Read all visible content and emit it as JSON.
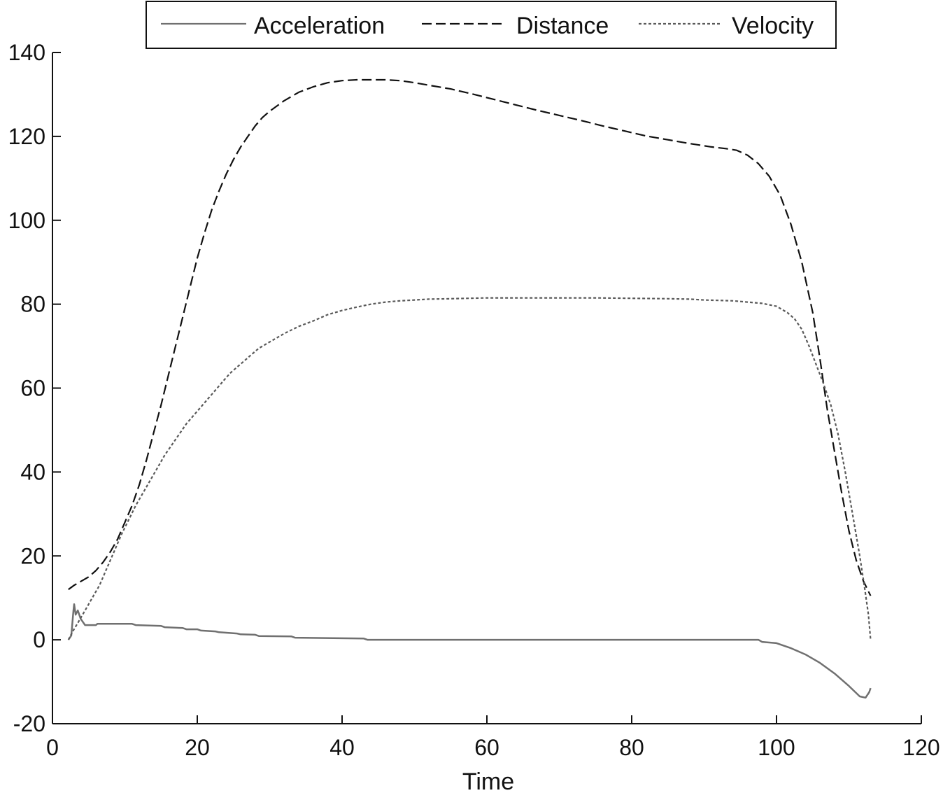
{
  "chart_data": {
    "type": "line",
    "title": "",
    "xlabel": "Time",
    "ylabel": "",
    "xlim": [
      0,
      120
    ],
    "ylim": [
      -20,
      140
    ],
    "xticks": [
      0,
      20,
      40,
      60,
      80,
      100,
      120
    ],
    "yticks": [
      -20,
      0,
      20,
      40,
      60,
      80,
      100,
      120,
      140
    ],
    "grid": false,
    "legend_position": "top",
    "series": [
      {
        "name": "Acceleration",
        "style": "solid",
        "color": "#707070",
        "points": [
          [
            2.2,
            0
          ],
          [
            2.6,
            1
          ],
          [
            2.9,
            7
          ],
          [
            3.0,
            8.5
          ],
          [
            3.2,
            6
          ],
          [
            3.5,
            7
          ],
          [
            3.9,
            5
          ],
          [
            4.5,
            3.5
          ],
          [
            6,
            3.5
          ],
          [
            6.2,
            3.8
          ],
          [
            11,
            3.8
          ],
          [
            11.5,
            3.5
          ],
          [
            15,
            3.3
          ],
          [
            15.5,
            3
          ],
          [
            18,
            2.8
          ],
          [
            18.5,
            2.5
          ],
          [
            20,
            2.5
          ],
          [
            20.5,
            2.2
          ],
          [
            22.5,
            2
          ],
          [
            23,
            1.8
          ],
          [
            25.5,
            1.5
          ],
          [
            26,
            1.3
          ],
          [
            28,
            1.2
          ],
          [
            28.5,
            0.9
          ],
          [
            33,
            0.8
          ],
          [
            33.5,
            0.5
          ],
          [
            43,
            0.3
          ],
          [
            43.5,
            0
          ],
          [
            97.5,
            0
          ],
          [
            98,
            -0.5
          ],
          [
            100,
            -0.8
          ],
          [
            102,
            -2
          ],
          [
            104,
            -3.5
          ],
          [
            106,
            -5.5
          ],
          [
            108,
            -8
          ],
          [
            110,
            -11
          ],
          [
            111.5,
            -13.5
          ],
          [
            112.3,
            -13.8
          ],
          [
            112.8,
            -12.5
          ],
          [
            113,
            -11.5
          ]
        ]
      },
      {
        "name": "Distance",
        "style": "dashed",
        "color": "#111111",
        "points": [
          [
            2.2,
            12
          ],
          [
            3,
            13
          ],
          [
            4,
            14
          ],
          [
            5,
            15
          ],
          [
            6,
            16.5
          ],
          [
            7,
            18.5
          ],
          [
            8,
            21
          ],
          [
            9,
            24
          ],
          [
            10,
            28
          ],
          [
            11,
            32
          ],
          [
            12,
            37
          ],
          [
            13,
            43
          ],
          [
            14,
            49.5
          ],
          [
            15,
            56
          ],
          [
            16,
            63
          ],
          [
            17,
            70
          ],
          [
            18,
            77
          ],
          [
            19,
            84
          ],
          [
            20,
            91
          ],
          [
            21,
            97
          ],
          [
            22,
            102.5
          ],
          [
            23,
            107
          ],
          [
            24,
            111
          ],
          [
            25,
            114.5
          ],
          [
            26,
            117.5
          ],
          [
            27,
            120
          ],
          [
            28,
            122.5
          ],
          [
            29,
            124.5
          ],
          [
            30,
            126
          ],
          [
            32,
            128.5
          ],
          [
            34,
            130.5
          ],
          [
            36,
            131.8
          ],
          [
            38,
            132.8
          ],
          [
            40,
            133.3
          ],
          [
            42,
            133.5
          ],
          [
            44,
            133.5
          ],
          [
            46,
            133.5
          ],
          [
            48,
            133.3
          ],
          [
            50,
            132.8
          ],
          [
            52,
            132.2
          ],
          [
            55,
            131.3
          ],
          [
            58,
            130.1
          ],
          [
            61,
            128.8
          ],
          [
            64,
            127.5
          ],
          [
            67,
            126.2
          ],
          [
            70,
            125
          ],
          [
            73,
            123.8
          ],
          [
            76,
            122.5
          ],
          [
            79,
            121.3
          ],
          [
            82,
            120.1
          ],
          [
            85,
            119.2
          ],
          [
            88,
            118.3
          ],
          [
            91,
            117.5
          ],
          [
            93,
            117.1
          ],
          [
            94.5,
            116.7
          ],
          [
            96,
            115.5
          ],
          [
            97.5,
            113.5
          ],
          [
            99,
            110.5
          ],
          [
            100.5,
            106
          ],
          [
            102,
            99
          ],
          [
            103.5,
            90
          ],
          [
            105,
            78
          ],
          [
            106,
            67
          ],
          [
            107,
            55
          ],
          [
            108,
            45
          ],
          [
            109,
            35
          ],
          [
            110,
            26
          ],
          [
            111,
            19
          ],
          [
            112,
            14
          ],
          [
            113,
            10.5
          ]
        ]
      },
      {
        "name": "Velocity",
        "style": "dotted",
        "color": "#5a5a5a",
        "points": [
          [
            2.2,
            0
          ],
          [
            2.8,
            2
          ],
          [
            3.5,
            4
          ],
          [
            4.5,
            7
          ],
          [
            5.5,
            10
          ],
          [
            6.5,
            13
          ],
          [
            7.5,
            17
          ],
          [
            8.5,
            21
          ],
          [
            9.5,
            25
          ],
          [
            10.5,
            28.5
          ],
          [
            11.5,
            32
          ],
          [
            12.5,
            35
          ],
          [
            13.5,
            38
          ],
          [
            14.5,
            41
          ],
          [
            15.5,
            44
          ],
          [
            16.5,
            46.5
          ],
          [
            17.5,
            49
          ],
          [
            18.5,
            51.5
          ],
          [
            19.5,
            53.5
          ],
          [
            20.5,
            55.5
          ],
          [
            21.5,
            57.5
          ],
          [
            22.5,
            59.5
          ],
          [
            23.5,
            61.5
          ],
          [
            24.5,
            63.5
          ],
          [
            25.5,
            65
          ],
          [
            26.5,
            66.5
          ],
          [
            27.5,
            68
          ],
          [
            28.5,
            69.5
          ],
          [
            30,
            71
          ],
          [
            32,
            73
          ],
          [
            34,
            74.7
          ],
          [
            36,
            76
          ],
          [
            38,
            77.5
          ],
          [
            40,
            78.5
          ],
          [
            42,
            79.3
          ],
          [
            44,
            80
          ],
          [
            46,
            80.5
          ],
          [
            48,
            80.8
          ],
          [
            50,
            81
          ],
          [
            52,
            81.2
          ],
          [
            55,
            81.3
          ],
          [
            60,
            81.5
          ],
          [
            65,
            81.5
          ],
          [
            70,
            81.5
          ],
          [
            75,
            81.5
          ],
          [
            80,
            81.4
          ],
          [
            85,
            81.3
          ],
          [
            88,
            81.2
          ],
          [
            90,
            81
          ],
          [
            94,
            80.8
          ],
          [
            96,
            80.5
          ],
          [
            98,
            80.2
          ],
          [
            100,
            79.5
          ],
          [
            101.5,
            78
          ],
          [
            102.5,
            76.5
          ],
          [
            103.5,
            74
          ],
          [
            104.5,
            70
          ],
          [
            105.5,
            65.5
          ],
          [
            106.5,
            61
          ],
          [
            107.5,
            56
          ],
          [
            108.5,
            49
          ],
          [
            109.5,
            40
          ],
          [
            110.5,
            30
          ],
          [
            111.5,
            20
          ],
          [
            112.2,
            12
          ],
          [
            112.7,
            6
          ],
          [
            113,
            0
          ]
        ]
      }
    ]
  }
}
